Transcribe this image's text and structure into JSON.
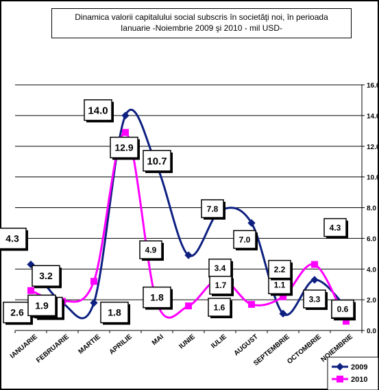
{
  "title_line1": "Dinamica  valorii capitalului social subscris în societăţi noi,  în perioada",
  "title_line2": "Ianuarie -Noiembrie 2009 şi 2010  - mil  USD-",
  "colors": {
    "s2009": "#0d2080",
    "s2010": "#ff00ff"
  },
  "chart_data": {
    "type": "line",
    "title": "Dinamica  valorii capitalului social subscris în societăţi noi,  în perioada Ianuarie -Noiembrie 2009 şi 2010  - mil  USD-",
    "categories": [
      "IANUARIE",
      "FEBRUARIE",
      "MARTIE",
      "APRILIE",
      "MAI",
      "IUNIE",
      "IULIE",
      "AUGUST",
      "SEPTEMBRIE",
      "OCTOMBRIE",
      "NOIEMBRIE"
    ],
    "series": [
      {
        "name": "2009",
        "values": [
          4.3,
          1.8,
          1.8,
          14.0,
          10.7,
          4.9,
          7.8,
          7.0,
          1.1,
          3.3,
          1.5
        ],
        "labels": [
          "4.3",
          "1.8",
          "1.8",
          "14.0",
          "10.7",
          "4.9",
          "7.8",
          "7.0",
          "1.1",
          "3.3",
          "1.5"
        ]
      },
      {
        "name": "2010",
        "values": [
          2.6,
          1.9,
          3.2,
          12.9,
          1.8,
          1.6,
          3.4,
          1.7,
          2.2,
          4.3,
          0.6
        ],
        "labels": [
          "2.6",
          "1.9",
          "3.2",
          "12.9",
          "1.8",
          "1.6",
          "3.4",
          "1.7",
          "2.2",
          "4.3",
          "0.6"
        ]
      }
    ],
    "ylim": [
      0,
      16
    ],
    "yticks": [
      "0.0",
      "2.0",
      "4.0",
      "6.0",
      "8.0",
      "10.0",
      "12.0",
      "14.0",
      "16.0"
    ],
    "grid": true,
    "legend": "bottom-right",
    "legend_entries": [
      "2009",
      "2010"
    ]
  }
}
